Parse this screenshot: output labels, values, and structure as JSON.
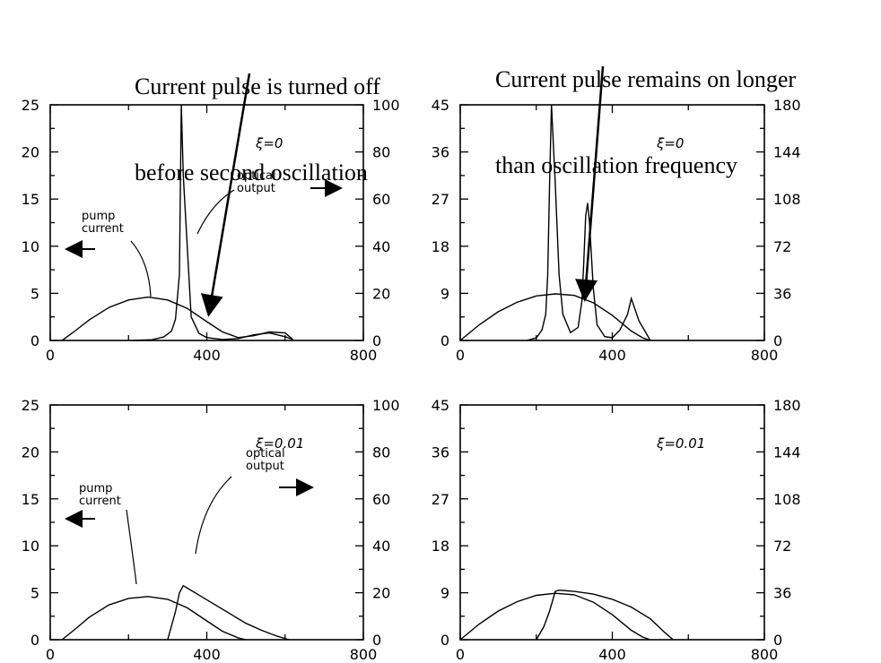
{
  "callouts": {
    "left": [
      "Current pulse is turned off",
      "before second oscillation"
    ],
    "right": [
      "Current pulse remains on longer",
      "than oscillation frequency"
    ]
  },
  "chart_data": [
    {
      "type": "line",
      "position": "top-left",
      "annotation": "ξ=0",
      "x_ticks": [
        "0",
        "400",
        "800"
      ],
      "xlim": [
        0,
        800
      ],
      "left_ticks": [
        "0",
        "5",
        "10",
        "15",
        "20",
        "25"
      ],
      "left_ylim": [
        0,
        25
      ],
      "right_ticks": [
        "0",
        "20",
        "40",
        "60",
        "80",
        "100"
      ],
      "right_ylim": [
        0,
        100
      ],
      "labels": {
        "current": [
          "pump",
          "current"
        ],
        "output": [
          "optical",
          "output"
        ]
      },
      "series": [
        {
          "axis": "left",
          "x": [
            30,
            60,
            100,
            150,
            200,
            250,
            300,
            350,
            400,
            440,
            480,
            520,
            560,
            600,
            620
          ],
          "y": [
            0,
            0.9,
            2.2,
            3.5,
            4.3,
            4.6,
            4.3,
            3.4,
            2.0,
            0.9,
            0.3,
            0.5,
            0.9,
            0.8,
            0.1
          ]
        },
        {
          "axis": "right",
          "x": [
            210,
            260,
            290,
            310,
            320,
            330,
            335,
            340,
            350,
            360,
            380,
            400,
            440,
            480,
            520,
            560,
            600,
            620
          ],
          "y": [
            0,
            0.3,
            1.5,
            4,
            9,
            28,
            100,
            70,
            40,
            10,
            3,
            1.2,
            0.4,
            0.8,
            2.4,
            3.2,
            1.6,
            0.4
          ]
        }
      ]
    },
    {
      "type": "line",
      "position": "top-right",
      "annotation": "ξ=0",
      "x_ticks": [
        "0",
        "400",
        "800"
      ],
      "xlim": [
        0,
        800
      ],
      "left_ticks": [
        "0",
        "9",
        "18",
        "27",
        "36",
        "45"
      ],
      "left_ylim": [
        0,
        45
      ],
      "right_ticks": [
        "0",
        "36",
        "72",
        "108",
        "144",
        "180"
      ],
      "right_ylim": [
        0,
        180
      ],
      "series": [
        {
          "axis": "left",
          "x": [
            0,
            50,
            100,
            150,
            200,
            250,
            300,
            350,
            400,
            450,
            480,
            500
          ],
          "y": [
            0,
            3.0,
            5.5,
            7.3,
            8.5,
            8.9,
            8.6,
            7.2,
            4.8,
            1.8,
            0.5,
            0
          ]
        },
        {
          "axis": "right",
          "x": [
            175,
            200,
            215,
            225,
            230,
            235,
            240,
            250,
            260,
            270,
            290,
            310,
            320,
            325,
            330,
            335,
            340,
            350,
            360,
            380,
            400,
            420,
            440,
            450,
            470,
            500
          ],
          "y": [
            0,
            2,
            8,
            20,
            50,
            120,
            180,
            120,
            50,
            20,
            6,
            10,
            30,
            60,
            95,
            105,
            90,
            40,
            12,
            3,
            2,
            8,
            20,
            32,
            15,
            0
          ]
        }
      ]
    },
    {
      "type": "line",
      "position": "bottom-left",
      "annotation": "ξ=0.01",
      "x_ticks": [
        "0",
        "400",
        "800"
      ],
      "xlim": [
        0,
        800
      ],
      "left_ticks": [
        "0",
        "5",
        "10",
        "15",
        "20",
        "25"
      ],
      "left_ylim": [
        0,
        25
      ],
      "right_ticks": [
        "0",
        "20",
        "40",
        "60",
        "80",
        "100"
      ],
      "right_ylim": [
        0,
        100
      ],
      "labels": {
        "current": [
          "pump",
          "current"
        ],
        "output": [
          "optical",
          "output"
        ]
      },
      "series": [
        {
          "axis": "left",
          "x": [
            30,
            60,
            100,
            150,
            200,
            250,
            300,
            350,
            400,
            440,
            480,
            500
          ],
          "y": [
            0,
            1.0,
            2.4,
            3.7,
            4.4,
            4.6,
            4.3,
            3.4,
            2.0,
            0.9,
            0.2,
            0
          ]
        },
        {
          "axis": "right",
          "x": [
            300,
            320,
            330,
            340,
            350,
            380,
            420,
            460,
            500,
            540,
            580,
            610
          ],
          "y": [
            0,
            12,
            20,
            23,
            22,
            19,
            15,
            11,
            7,
            4,
            1.5,
            0
          ]
        }
      ]
    },
    {
      "type": "line",
      "position": "bottom-right",
      "annotation": "ξ=0.01",
      "x_ticks": [
        "0",
        "400",
        "800"
      ],
      "xlim": [
        0,
        800
      ],
      "left_ticks": [
        "0",
        "9",
        "18",
        "27",
        "36",
        "45"
      ],
      "left_ylim": [
        0,
        45
      ],
      "right_ticks": [
        "0",
        "36",
        "72",
        "108",
        "144",
        "180"
      ],
      "right_ylim": [
        0,
        180
      ],
      "series": [
        {
          "axis": "left",
          "x": [
            0,
            50,
            100,
            150,
            200,
            250,
            300,
            350,
            400,
            450,
            480,
            500
          ],
          "y": [
            0,
            3.0,
            5.5,
            7.3,
            8.5,
            8.9,
            8.6,
            7.2,
            4.8,
            1.8,
            0.5,
            0
          ]
        },
        {
          "axis": "right",
          "x": [
            200,
            220,
            235,
            245,
            250,
            260,
            300,
            350,
            400,
            450,
            500,
            540,
            560
          ],
          "y": [
            0,
            10,
            22,
            32,
            37,
            38,
            37,
            35,
            31,
            25,
            16,
            5,
            0
          ]
        }
      ]
    }
  ]
}
